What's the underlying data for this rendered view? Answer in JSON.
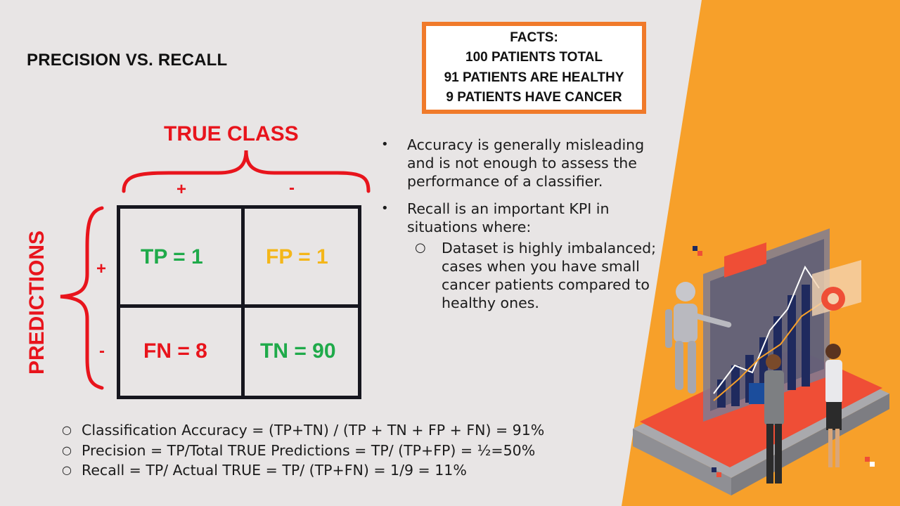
{
  "title": "PRECISION VS. RECALL",
  "facts": {
    "heading": "FACTS:",
    "lines": [
      "100 PATIENTS TOTAL",
      "91 PATIENTS ARE HEALTHY",
      "9 PATIENTS HAVE CANCER"
    ]
  },
  "matrix": {
    "true_class_label": "TRUE CLASS",
    "predictions_label": "PREDICTIONS",
    "col_plus": "+",
    "col_minus": "-",
    "row_plus": "+",
    "row_minus": "-",
    "tp": "TP = 1",
    "fp": "FP = 1",
    "fn": "FN = 8",
    "tn": "TN = 90"
  },
  "bullets": {
    "b1": "Accuracy is generally misleading and is not enough to assess the performance of a classifier.",
    "b2": "Recall is an important KPI in situations where:",
    "sub1": "Dataset is highly imbalanced; cases when you have small cancer patients compared to healthy ones."
  },
  "formulas": [
    "Classification Accuracy = (TP+TN)  / (TP + TN + FP + FN) = 91%",
    "Precision = TP/Total TRUE Predictions = TP/ (TP+FP) = ½=50%",
    "Recall = TP/ Actual TRUE = TP/ (TP+FN) = 1/9 = 11%"
  ],
  "colors": {
    "accent_red": "#e8141c",
    "green": "#1faa4a",
    "yellow": "#f4b619",
    "orange": "#f7a02a",
    "box_border": "#f07a2a"
  }
}
